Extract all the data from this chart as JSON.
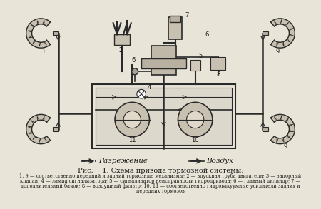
{
  "title": "Рис.    1. Схема привода тормозной системы:",
  "caption_lines": [
    "1, 9 — соответственно передний и задний тормозные механизмы; 2 — впускная труба двигателя; 3 — запорный",
    "клапан; 4 — лампа сигнализатора; 5 — сигнализатор неисправности гидропривода; 6 — главный цилиндр; 7 —",
    "дополнительный бачок; 8 — воздушный фильтр; 10, 11 — соответственно гидровакуумные усилители задних и",
    "передних тормозов"
  ],
  "legend_razrezhenie": "Разрежение",
  "legend_vozdukh": "Воздух",
  "bg_color": "#f0ece0",
  "fig_bg": "#e8e4d8",
  "text_color": "#1a1a1a",
  "line_color": "#2a2a2a"
}
